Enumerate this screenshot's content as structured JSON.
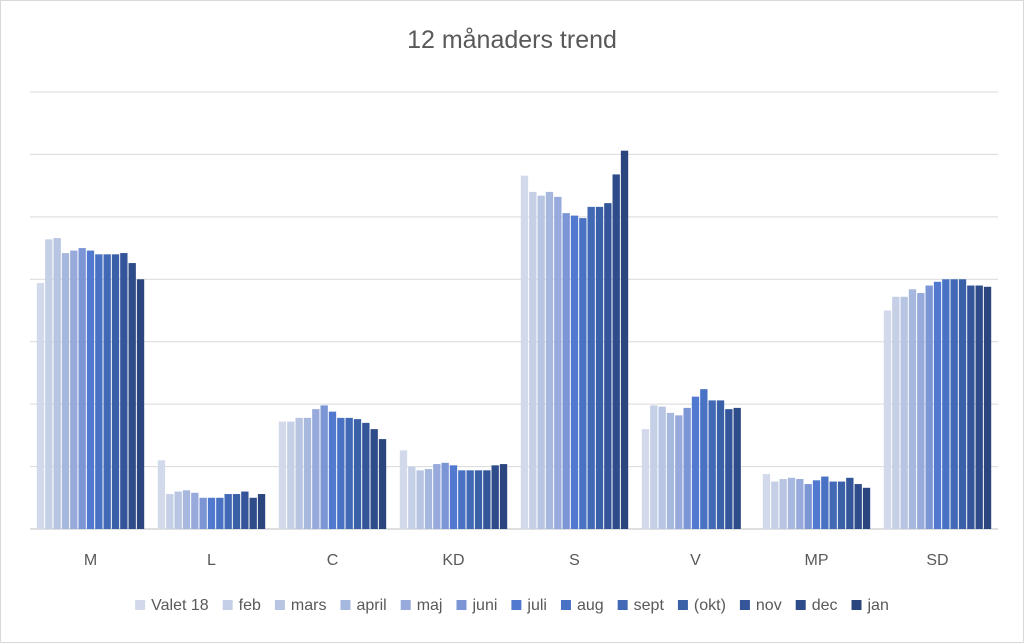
{
  "chart_data": {
    "type": "bar",
    "title": "12 månaders trend",
    "categories": [
      "M",
      "L",
      "C",
      "KD",
      "S",
      "V",
      "MP",
      "SD"
    ],
    "ylim": [
      0,
      35
    ],
    "grid": true,
    "legend_position": "bottom",
    "series": [
      {
        "name": "Valet 18",
        "color": "#d1d9ea",
        "values": [
          19.7,
          5.5,
          8.6,
          6.3,
          28.3,
          8.0,
          4.4,
          17.5
        ]
      },
      {
        "name": "feb",
        "color": "#c5cfe6",
        "values": [
          23.2,
          2.8,
          8.6,
          5.0,
          27.0,
          9.9,
          3.8,
          18.6
        ]
      },
      {
        "name": "mars",
        "color": "#b8c5e2",
        "values": [
          23.3,
          3.0,
          8.9,
          4.7,
          26.7,
          9.8,
          4.0,
          18.6
        ]
      },
      {
        "name": "april",
        "color": "#a7b8df",
        "values": [
          22.1,
          3.1,
          8.9,
          4.8,
          27.0,
          9.3,
          4.1,
          19.2
        ]
      },
      {
        "name": "maj",
        "color": "#97aadb",
        "values": [
          22.3,
          2.9,
          9.6,
          5.2,
          26.6,
          9.1,
          4.0,
          18.9
        ]
      },
      {
        "name": "juni",
        "color": "#7c96d5",
        "values": [
          22.5,
          2.5,
          9.9,
          5.3,
          25.3,
          9.7,
          3.6,
          19.5
        ]
      },
      {
        "name": "juli",
        "color": "#5079cf",
        "values": [
          22.3,
          2.5,
          9.4,
          5.1,
          25.1,
          10.6,
          3.9,
          19.8
        ]
      },
      {
        "name": "aug",
        "color": "#4a72c4",
        "values": [
          22.0,
          2.5,
          8.9,
          4.7,
          24.9,
          11.2,
          4.2,
          20.0
        ]
      },
      {
        "name": "sept",
        "color": "#4169b6",
        "values": [
          22.0,
          2.8,
          8.9,
          4.7,
          25.8,
          10.3,
          3.8,
          20.0
        ]
      },
      {
        "name": "(okt)",
        "color": "#3a60a8",
        "values": [
          22.0,
          2.8,
          8.8,
          4.7,
          25.8,
          10.3,
          3.8,
          20.0
        ]
      },
      {
        "name": "nov",
        "color": "#345599",
        "values": [
          22.1,
          3.0,
          8.5,
          4.7,
          26.1,
          9.6,
          4.1,
          19.5
        ]
      },
      {
        "name": "dec",
        "color": "#2f4c8a",
        "values": [
          21.3,
          2.5,
          8.0,
          5.1,
          28.4,
          9.7,
          3.6,
          19.5
        ]
      },
      {
        "name": "jan",
        "color": "#2b467f",
        "values": [
          20.0,
          2.8,
          7.2,
          5.2,
          30.3,
          null,
          3.3,
          19.4
        ]
      }
    ]
  }
}
